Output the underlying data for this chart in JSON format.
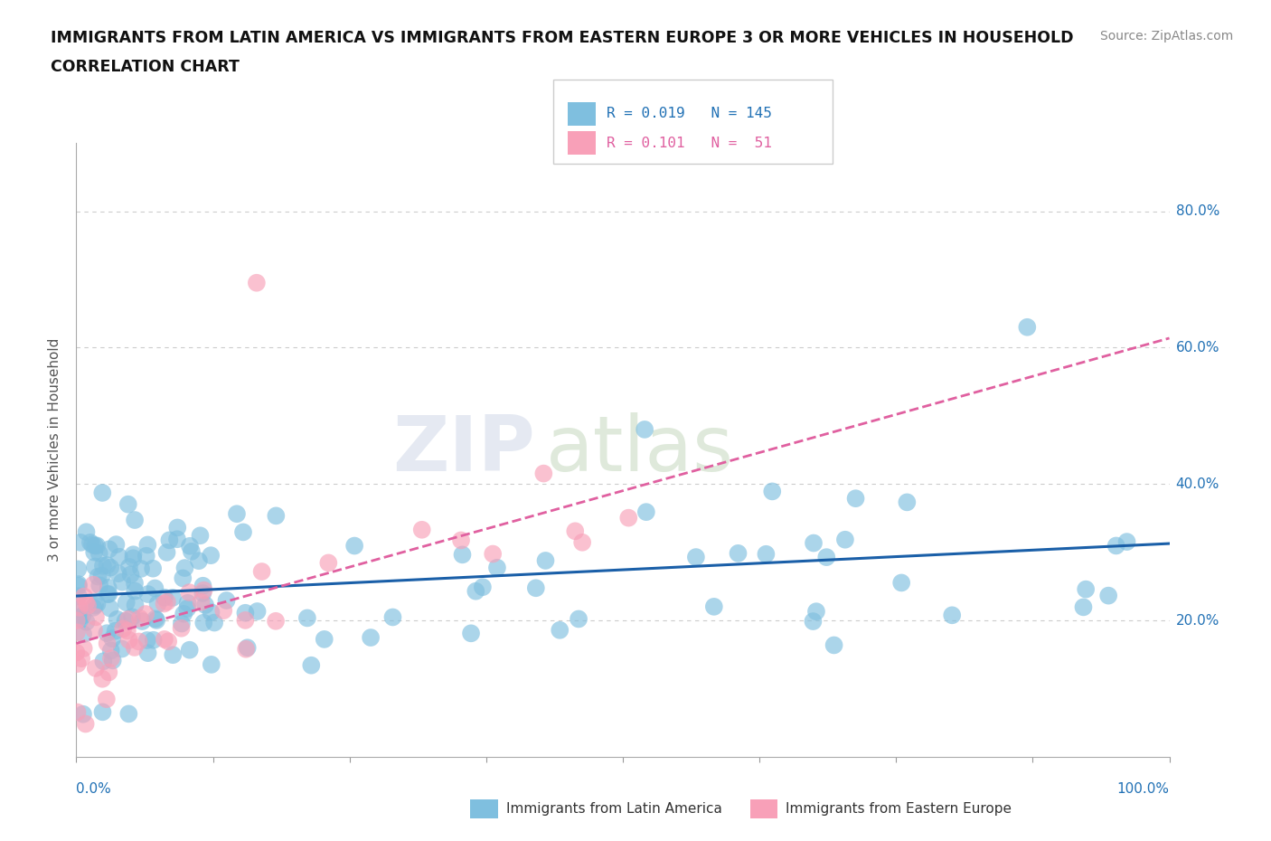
{
  "title_line1": "IMMIGRANTS FROM LATIN AMERICA VS IMMIGRANTS FROM EASTERN EUROPE 3 OR MORE VEHICLES IN HOUSEHOLD",
  "title_line2": "CORRELATION CHART",
  "source": "Source: ZipAtlas.com",
  "legend_blue_r": "0.019",
  "legend_blue_n": "145",
  "legend_pink_r": "0.101",
  "legend_pink_n": "51",
  "legend_label_blue": "Immigrants from Latin America",
  "legend_label_pink": "Immigrants from Eastern Europe",
  "color_blue": "#7fbfdf",
  "color_pink": "#f8a0b8",
  "color_blue_line": "#1a5fa8",
  "color_pink_line": "#e060a0",
  "color_text_blue": "#2171b5",
  "color_text_pink": "#e060a0",
  "ytick_vals": [
    0.2,
    0.4,
    0.6,
    0.8
  ],
  "ytick_labels": [
    "20.0%",
    "40.0%",
    "60.0%",
    "80.0%"
  ],
  "xmin": 0.0,
  "xmax": 1.0,
  "ymin": 0.0,
  "ymax": 0.9,
  "watermark_zip": "ZIP",
  "watermark_atlas": "atlas",
  "background_color": "#ffffff",
  "grid_color": "#cccccc",
  "ylabel": "3 or more Vehicles in Household"
}
